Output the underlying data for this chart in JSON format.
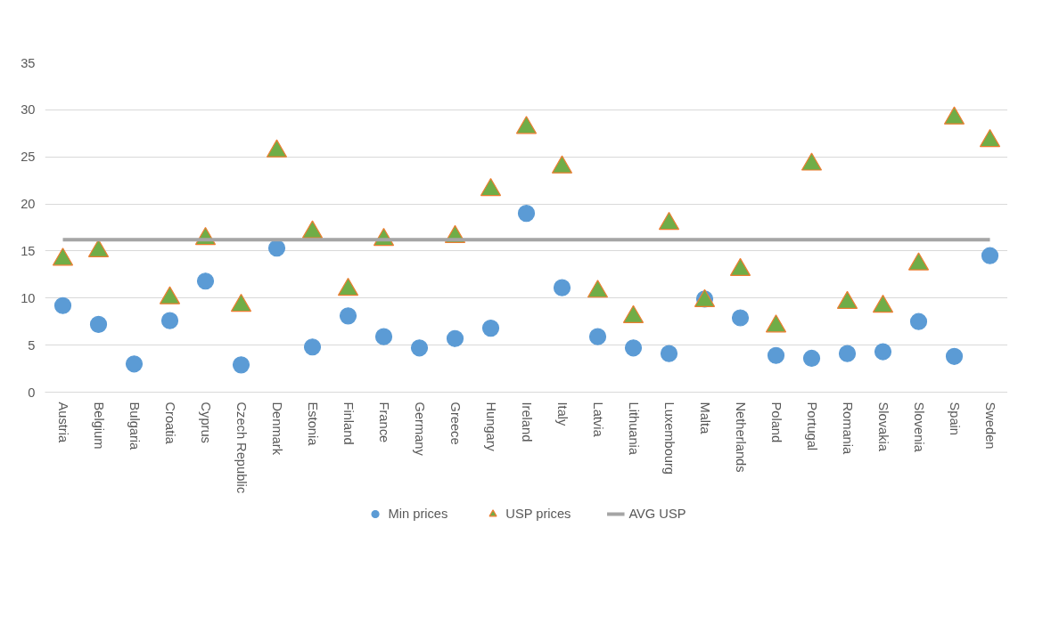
{
  "chart_data": {
    "type": "scatter",
    "categories": [
      "Austria",
      "Belgium",
      "Bulgaria",
      "Croatia",
      "Cyprus",
      "Czech Republic",
      "Denmark",
      "Estonia",
      "Finland",
      "France",
      "Germany",
      "Greece",
      "Hungary",
      "Ireland",
      "Italy",
      "Latvia",
      "Lithuania",
      "Luxembourg",
      "Malta",
      "Netherlands",
      "Poland",
      "Portugal",
      "Romania",
      "Slovakia",
      "Slovenia",
      "Spain",
      "Sweden"
    ],
    "series": [
      {
        "name": "Min prices",
        "color": "#5b9bd5",
        "marker": "circle",
        "values": [
          9.2,
          7.2,
          3.0,
          7.6,
          11.8,
          2.9,
          15.3,
          4.8,
          8.1,
          5.9,
          4.7,
          5.7,
          6.8,
          19.0,
          11.1,
          5.9,
          4.7,
          4.1,
          9.9,
          7.9,
          3.9,
          3.6,
          4.1,
          4.3,
          7.5,
          3.8,
          14.5
        ]
      },
      {
        "name": "USP prices",
        "color": "#70ad47",
        "marker": "triangle",
        "values": [
          14.1,
          15.0,
          null,
          10.0,
          16.3,
          9.2,
          25.6,
          17.0,
          10.9,
          16.2,
          null,
          16.5,
          21.5,
          28.1,
          23.9,
          10.7,
          8.0,
          17.9,
          9.7,
          13.0,
          7.0,
          24.2,
          9.5,
          9.1,
          13.6,
          29.1,
          26.7
        ]
      },
      {
        "name": "AVG USP",
        "color": "#a5a5a5",
        "type": "line",
        "marker": "none",
        "values": [
          16.2,
          16.2,
          16.2,
          16.2,
          16.2,
          16.2,
          16.2,
          16.2,
          16.2,
          16.2,
          16.2,
          16.2,
          16.2,
          16.2,
          16.2,
          16.2,
          16.2,
          16.2,
          16.2,
          16.2,
          16.2,
          16.2,
          16.2,
          16.2,
          16.2,
          16.2,
          16.2
        ]
      }
    ],
    "ylim": [
      0,
      35
    ],
    "yticks": [
      0,
      5,
      10,
      15,
      20,
      25,
      30,
      35
    ],
    "grid": "y",
    "legend": "bottom"
  }
}
